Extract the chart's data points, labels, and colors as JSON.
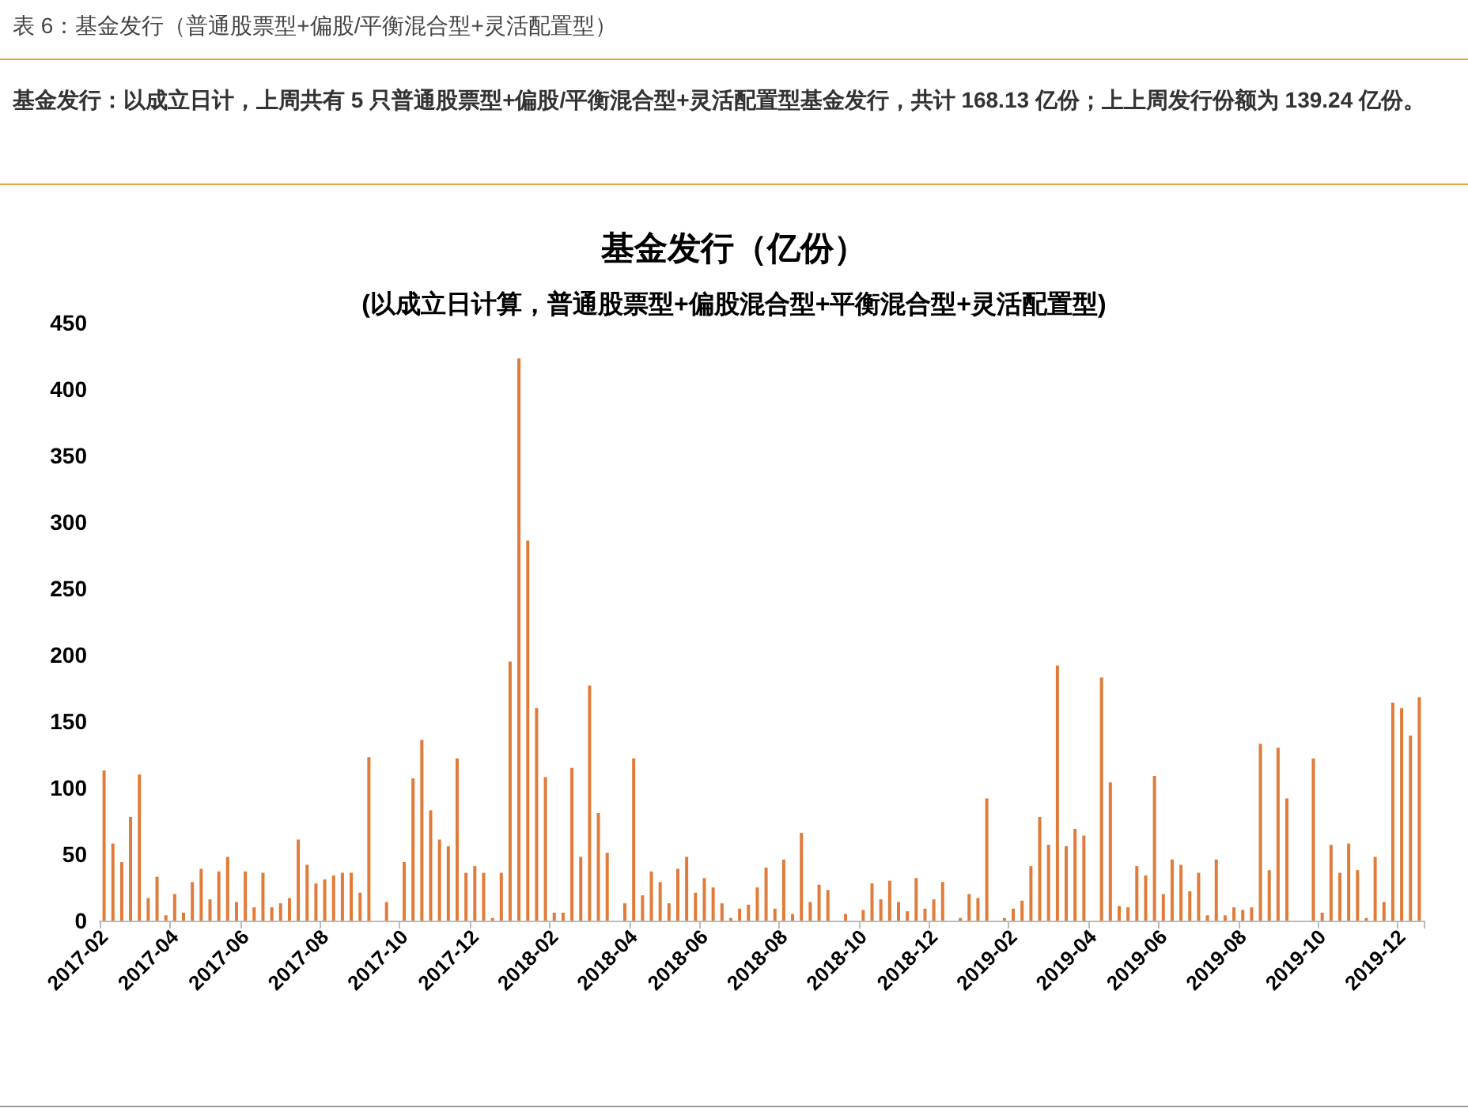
{
  "chart_data": {
    "type": "bar",
    "title": "基金发行（亿份）",
    "subtitle": "(以成立日计算，普通股票型+偏股混合型+平衡混合型+灵活配置型)",
    "annotations": [
      "表 6：基金发行（普通股票型+偏股/平衡混合型+灵活配置型）",
      "基金发行：以成立日计，上周共有 5 只普通股票型+偏股/平衡混合型+灵活配置型基金发行，共计 168.13 亿份；上上周发行份额为 139.24 亿份。"
    ],
    "categories": [
      "2017-02",
      null,
      null,
      null,
      null,
      null,
      null,
      null,
      "2017-04",
      null,
      null,
      null,
      null,
      null,
      null,
      null,
      "2017-06",
      null,
      null,
      null,
      null,
      null,
      null,
      null,
      null,
      "2017-08",
      null,
      null,
      null,
      null,
      null,
      null,
      null,
      null,
      "2017-10",
      null,
      null,
      null,
      null,
      null,
      null,
      null,
      "2017-12",
      null,
      null,
      null,
      null,
      null,
      null,
      null,
      null,
      "2018-02",
      null,
      null,
      null,
      null,
      null,
      null,
      null,
      null,
      "2018-04",
      null,
      null,
      null,
      null,
      null,
      null,
      null,
      "2018-06",
      null,
      null,
      null,
      null,
      null,
      null,
      null,
      null,
      "2018-08",
      null,
      null,
      null,
      null,
      null,
      null,
      null,
      null,
      "2018-10",
      null,
      null,
      null,
      null,
      null,
      null,
      null,
      "2018-12",
      null,
      null,
      null,
      null,
      null,
      null,
      null,
      null,
      "2019-02",
      null,
      null,
      null,
      null,
      null,
      null,
      null,
      null,
      "2019-04",
      null,
      null,
      null,
      null,
      null,
      null,
      null,
      "2019-06",
      null,
      null,
      null,
      null,
      null,
      null,
      null,
      null,
      "2019-08",
      null,
      null,
      null,
      null,
      null,
      null,
      null,
      null,
      "2019-10",
      null,
      null,
      null,
      null,
      null,
      null,
      null,
      null,
      "2019-12",
      null,
      null
    ],
    "values": [
      113,
      58,
      44,
      78,
      110,
      17,
      33,
      4,
      20,
      6,
      29,
      39,
      16,
      37,
      48,
      14,
      37,
      10,
      36,
      10,
      13,
      17,
      61,
      42,
      28,
      31,
      34,
      36,
      36,
      21,
      123,
      0,
      14,
      0,
      44,
      107,
      136,
      83,
      61,
      56,
      122,
      36,
      41,
      36,
      2,
      36,
      195,
      423,
      286,
      160,
      108,
      6,
      6,
      115,
      48,
      177,
      81,
      51,
      0,
      13,
      122,
      19,
      37,
      29,
      13,
      39,
      48,
      21,
      32,
      25,
      13,
      2,
      9,
      12,
      25,
      40,
      9,
      46,
      5,
      66,
      14,
      27,
      23,
      0,
      5,
      0,
      8,
      28,
      16,
      30,
      14,
      7,
      32,
      9,
      16,
      29,
      0,
      2,
      20,
      17,
      92,
      0,
      2,
      9,
      15,
      41,
      78,
      57,
      192,
      56,
      69,
      64,
      0,
      183,
      104,
      11,
      10,
      41,
      34,
      109,
      20,
      46,
      42,
      22,
      36,
      4,
      46,
      4,
      10,
      8,
      10,
      133,
      38,
      130,
      92,
      0,
      0,
      122,
      6,
      57,
      36,
      58,
      38,
      2,
      48,
      14,
      164,
      160,
      139.24,
      168.13
    ],
    "color": "#e07b39",
    "ylim": [
      0,
      450
    ],
    "yticks": [
      0,
      50,
      100,
      150,
      200,
      250,
      300,
      350,
      400,
      450
    ],
    "grid": false
  }
}
